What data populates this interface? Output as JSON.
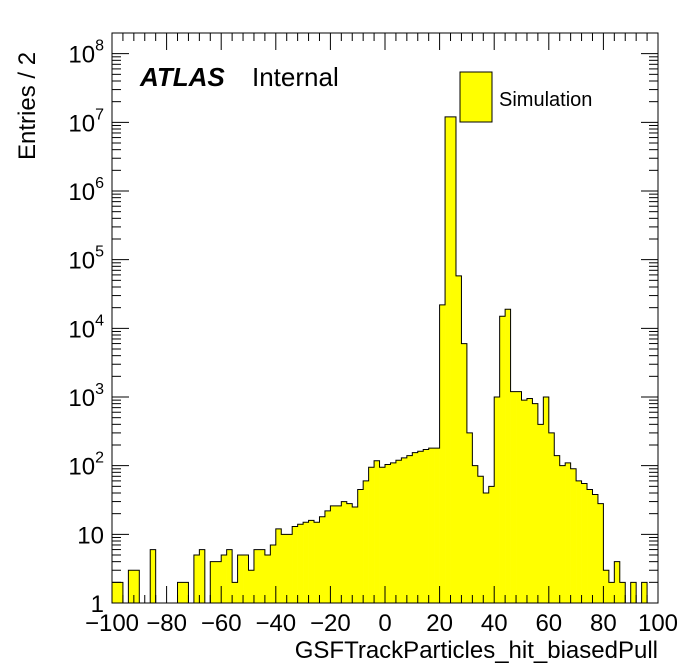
{
  "chart_data": {
    "type": "bar",
    "xlabel": "GSFTrackParticles_hit_biasedPull",
    "ylabel": "Entries / 2",
    "xlim": [
      -100,
      100
    ],
    "ylim": [
      1,
      200000000
    ],
    "y_scale": "log",
    "bin_width": 2,
    "x_ticks": [
      -100,
      -80,
      -60,
      -40,
      -20,
      0,
      20,
      40,
      60,
      80,
      100
    ],
    "x_tick_labels": [
      "−100",
      "−80",
      "−60",
      "−40",
      "−20",
      "0",
      "20",
      "40",
      "60",
      "80",
      "100"
    ],
    "y_ticks": [
      1,
      10,
      100,
      1000,
      10000,
      100000,
      1000000,
      10000000,
      100000000
    ],
    "y_tick_labels": [
      {
        "base": "1",
        "exp": ""
      },
      {
        "base": "10",
        "exp": ""
      },
      {
        "base": "10",
        "exp": "2"
      },
      {
        "base": "10",
        "exp": "3"
      },
      {
        "base": "10",
        "exp": "4"
      },
      {
        "base": "10",
        "exp": "5"
      },
      {
        "base": "10",
        "exp": "6"
      },
      {
        "base": "10",
        "exp": "7"
      },
      {
        "base": "10",
        "exp": "8"
      }
    ],
    "atlas_label": "ATLAS",
    "atlas_sublabel": "Internal",
    "legend": {
      "position": "top-right",
      "entries": [
        {
          "label": "Simulation",
          "color": "#ffff00"
        }
      ]
    },
    "series": [
      {
        "name": "Simulation",
        "fill_color": "#ffff00",
        "line_color": "#000000",
        "bin_low_edges": [
          -100,
          -98,
          -96,
          -94,
          -92,
          -90,
          -88,
          -86,
          -84,
          -82,
          -80,
          -78,
          -76,
          -74,
          -72,
          -70,
          -68,
          -66,
          -64,
          -62,
          -60,
          -58,
          -56,
          -54,
          -52,
          -50,
          -48,
          -46,
          -44,
          -42,
          -40,
          -38,
          -36,
          -34,
          -32,
          -30,
          -28,
          -26,
          -24,
          -22,
          -20,
          -18,
          -16,
          -14,
          -12,
          -10,
          -8,
          -6,
          -4,
          -2,
          0,
          2,
          4,
          6,
          8,
          10,
          12,
          14,
          16,
          18,
          20,
          22,
          24,
          26,
          28,
          30,
          32,
          34,
          36,
          38,
          40,
          42,
          44,
          46,
          48,
          50,
          52,
          54,
          56,
          58,
          60,
          62,
          64,
          66,
          68,
          70,
          72,
          74,
          76,
          78,
          80,
          82,
          84,
          86,
          88,
          90,
          92,
          94,
          96,
          98
        ],
        "values": [
          2,
          2,
          0,
          3,
          3,
          0,
          0,
          6,
          0,
          0,
          0,
          1,
          2,
          2,
          0,
          5,
          6,
          1,
          4,
          4,
          5,
          6,
          2,
          5,
          5,
          3,
          6,
          6,
          5,
          7,
          12,
          10,
          10,
          13,
          14,
          15,
          16,
          15,
          18,
          22,
          26,
          26,
          30,
          28,
          25,
          45,
          60,
          95,
          118,
          95,
          104,
          110,
          120,
          130,
          140,
          155,
          162,
          172,
          180,
          180,
          22000,
          12000000,
          12000000,
          58000,
          6000,
          300,
          100,
          70,
          40,
          50,
          1000,
          15000,
          19000,
          1200,
          1200,
          900,
          950,
          800,
          400,
          1000,
          300,
          140,
          100,
          110,
          90,
          60,
          55,
          45,
          38,
          28,
          3,
          2,
          4,
          2,
          0,
          2,
          0,
          2,
          0,
          0
        ]
      }
    ]
  }
}
